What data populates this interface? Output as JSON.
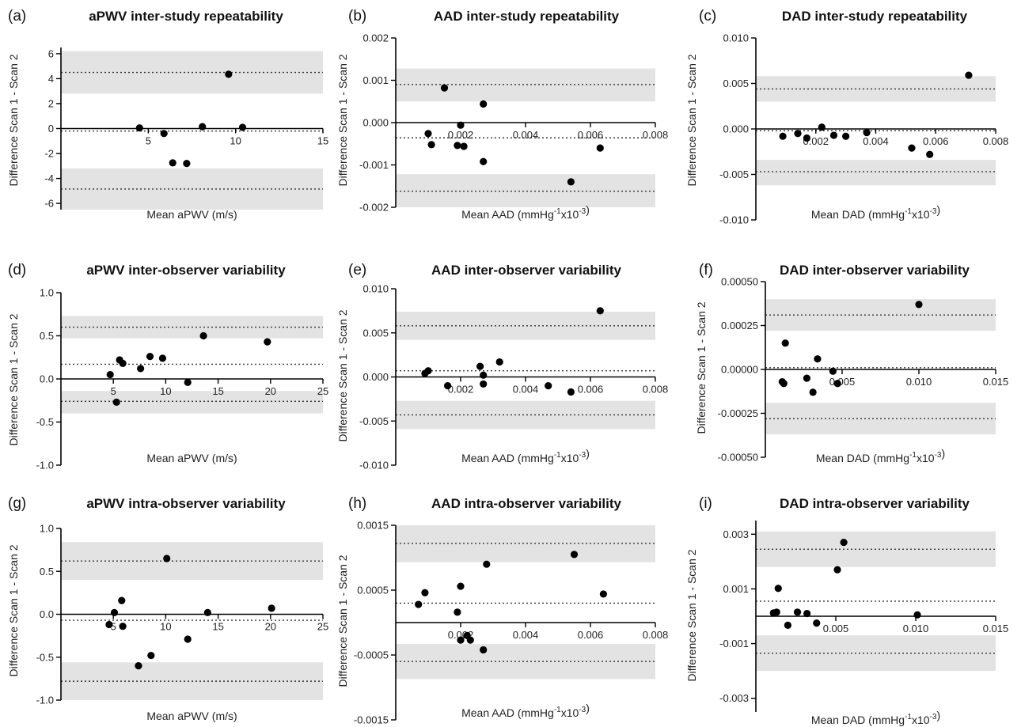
{
  "chart_data": [
    {
      "type": "scatter",
      "panel": "(a)",
      "title": "aPWV inter-study repeatability",
      "xlabel": "Mean aPWV (m/s)",
      "ylabel": "Difference Scan 1 - Scan 2",
      "xlim": [
        0,
        15
      ],
      "ylim": [
        -6.5,
        6.5
      ],
      "xticks": [
        {
          "v": 5,
          "t": "5"
        },
        {
          "v": 10,
          "t": "10"
        },
        {
          "v": 15,
          "t": "15"
        }
      ],
      "yticks": [
        {
          "v": -6,
          "t": "-6"
        },
        {
          "v": -4,
          "t": "-4"
        },
        {
          "v": -2,
          "t": "-2"
        },
        {
          "v": 0,
          "t": "0"
        },
        {
          "v": 2,
          "t": "2"
        },
        {
          "v": 4,
          "t": "4"
        },
        {
          "v": 6,
          "t": "6"
        }
      ],
      "xaxis_at_zero": true,
      "bias": -0.2,
      "upper_loa": 4.5,
      "lower_loa": -4.85,
      "upper_band": [
        2.8,
        6.2
      ],
      "lower_band": [
        -6.5,
        -3.2
      ],
      "points": [
        [
          4.5,
          0.05
        ],
        [
          5.9,
          -0.4
        ],
        [
          6.4,
          -2.75
        ],
        [
          7.2,
          -2.8
        ],
        [
          8.1,
          0.15
        ],
        [
          9.6,
          4.35
        ],
        [
          10.4,
          0.1
        ]
      ]
    },
    {
      "type": "scatter",
      "panel": "(b)",
      "title": "AAD inter-study repeatability",
      "xlabel": "Mean  AAD (mmHg-1x10-3)",
      "ylabel": "Difference Scan 1 - Scan 2",
      "xlim": [
        0,
        0.008
      ],
      "ylim": [
        -0.002,
        0.002
      ],
      "xticks": [
        {
          "v": 0.002,
          "t": "0.002"
        },
        {
          "v": 0.004,
          "t": "0.004"
        },
        {
          "v": 0.006,
          "t": "0.006"
        },
        {
          "v": 0.008,
          "t": "0.008"
        }
      ],
      "yticks": [
        {
          "v": -0.002,
          "t": "-0.002"
        },
        {
          "v": -0.001,
          "t": "-0.001"
        },
        {
          "v": 0,
          "t": "0.000"
        },
        {
          "v": 0.001,
          "t": "0.001"
        },
        {
          "v": 0.002,
          "t": "0.002"
        }
      ],
      "xaxis_at_zero": true,
      "bias": -0.00036,
      "upper_loa": 0.0009,
      "lower_loa": -0.00162,
      "upper_band": [
        0.0005,
        0.00128
      ],
      "lower_band": [
        -0.002,
        -0.00122
      ],
      "points": [
        [
          0.001,
          -0.00026
        ],
        [
          0.0011,
          -0.00052
        ],
        [
          0.0015,
          0.00082
        ],
        [
          0.0019,
          -0.00054
        ],
        [
          0.002,
          -6e-05
        ],
        [
          0.0021,
          -0.00056
        ],
        [
          0.0027,
          0.00044
        ],
        [
          0.0027,
          -0.00092
        ],
        [
          0.0054,
          -0.0014
        ],
        [
          0.0063,
          -0.0006
        ]
      ]
    },
    {
      "type": "scatter",
      "panel": "(c)",
      "title": "DAD inter-study repeatability",
      "xlabel": "Mean DAD (mmHg-1x10-3)",
      "ylabel": "Difference Scan 1 - Scan 2",
      "xlim": [
        0,
        0.008
      ],
      "ylim": [
        -0.01,
        0.01
      ],
      "xticks": [
        {
          "v": 0.002,
          "t": "0.002"
        },
        {
          "v": 0.004,
          "t": "0.004"
        },
        {
          "v": 0.006,
          "t": "0.006"
        },
        {
          "v": 0.008,
          "t": "0.008"
        }
      ],
      "yticks": [
        {
          "v": -0.01,
          "t": "-0.010"
        },
        {
          "v": -0.005,
          "t": "-0.005"
        },
        {
          "v": 0,
          "t": "0.000"
        },
        {
          "v": 0.005,
          "t": "0.005"
        },
        {
          "v": 0.01,
          "t": "0.010"
        }
      ],
      "xaxis_at_zero": true,
      "bias": -0.0002,
      "upper_loa": 0.0044,
      "lower_loa": -0.0047,
      "upper_band": [
        0.003,
        0.0058
      ],
      "lower_band": [
        -0.0062,
        -0.0034
      ],
      "points": [
        [
          0.0009,
          -0.0008
        ],
        [
          0.0014,
          -0.0005
        ],
        [
          0.0017,
          -0.001
        ],
        [
          0.0022,
          0.0002
        ],
        [
          0.0026,
          -0.0007
        ],
        [
          0.003,
          -0.0008
        ],
        [
          0.0037,
          -0.0004
        ],
        [
          0.0052,
          -0.0021
        ],
        [
          0.0058,
          -0.0028
        ],
        [
          0.0071,
          0.0059
        ]
      ]
    },
    {
      "type": "scatter",
      "panel": "(d)",
      "title": "aPWV inter-observer variability",
      "xlabel": "Mean aPWV (m/s)",
      "ylabel": "Difference Scan 1 - Scan 2",
      "xlim": [
        0,
        25
      ],
      "ylim": [
        -1.0,
        1.0
      ],
      "xticks": [
        {
          "v": 5,
          "t": "5"
        },
        {
          "v": 10,
          "t": "10"
        },
        {
          "v": 15,
          "t": "15"
        },
        {
          "v": 20,
          "t": "20"
        },
        {
          "v": 25,
          "t": "25"
        }
      ],
      "yticks": [
        {
          "v": -1,
          "t": "-1.0"
        },
        {
          "v": -0.5,
          "t": "-0.5"
        },
        {
          "v": 0,
          "t": "0.0"
        },
        {
          "v": 0.5,
          "t": "0.5"
        },
        {
          "v": 1,
          "t": "1.0"
        }
      ],
      "xaxis_at_zero": true,
      "bias": 0.17,
      "upper_loa": 0.6,
      "lower_loa": -0.26,
      "upper_band": [
        0.47,
        0.73
      ],
      "lower_band": [
        -0.4,
        -0.14
      ],
      "points": [
        [
          4.7,
          0.05
        ],
        [
          5.3,
          -0.27
        ],
        [
          5.6,
          0.22
        ],
        [
          5.9,
          0.18
        ],
        [
          7.6,
          0.12
        ],
        [
          8.5,
          0.26
        ],
        [
          9.7,
          0.24
        ],
        [
          12.1,
          -0.04
        ],
        [
          13.6,
          0.5
        ],
        [
          19.7,
          0.43
        ]
      ]
    },
    {
      "type": "scatter",
      "panel": "(e)",
      "title": "AAD inter-observer variability",
      "xlabel": "Mean  AAD (mmHg-1x10-3)",
      "ylabel": "Difference Scan 1 - Scan 2",
      "xlim": [
        0,
        0.008
      ],
      "ylim": [
        -0.01,
        0.01
      ],
      "xticks": [
        {
          "v": 0.002,
          "t": "0.002"
        },
        {
          "v": 0.004,
          "t": "0.004"
        },
        {
          "v": 0.006,
          "t": "0.006"
        },
        {
          "v": 0.008,
          "t": "0.008"
        }
      ],
      "yticks": [
        {
          "v": -0.01,
          "t": "-0.010"
        },
        {
          "v": -0.005,
          "t": "-0.005"
        },
        {
          "v": 0,
          "t": "0.000"
        },
        {
          "v": 0.005,
          "t": "0.005"
        },
        {
          "v": 0.01,
          "t": "0.010"
        }
      ],
      "xaxis_at_zero": true,
      "bias": 0.0007,
      "upper_loa": 0.0058,
      "lower_loa": -0.0043,
      "upper_band": [
        0.0042,
        0.0074
      ],
      "lower_band": [
        -0.0059,
        -0.0027
      ],
      "points": [
        [
          0.0009,
          0.0004
        ],
        [
          0.001,
          0.0007
        ],
        [
          0.0016,
          -0.001
        ],
        [
          0.0026,
          0.0012
        ],
        [
          0.0027,
          0.0002
        ],
        [
          0.0027,
          -0.0008
        ],
        [
          0.0032,
          0.0017
        ],
        [
          0.0047,
          -0.001
        ],
        [
          0.0054,
          -0.0017
        ],
        [
          0.0063,
          0.0075
        ]
      ]
    },
    {
      "type": "scatter",
      "panel": "(f)",
      "title": "DAD inter-observer variability",
      "xlabel": "Mean DAD (mmHg-1x10-3)",
      "ylabel": "Difference Scan 1 - Scan 2",
      "xlim": [
        0,
        0.015
      ],
      "ylim": [
        -0.0005,
        0.0005
      ],
      "xticks": [
        {
          "v": 0.005,
          "t": "0.005"
        },
        {
          "v": 0.01,
          "t": "0.010"
        },
        {
          "v": 0.015,
          "t": "0.015"
        }
      ],
      "yticks": [
        {
          "v": -0.0005,
          "t": "-0.00050"
        },
        {
          "v": -0.00025,
          "t": "-0.00025"
        },
        {
          "v": 0,
          "t": "0.00000"
        },
        {
          "v": 0.00025,
          "t": "0.00025"
        },
        {
          "v": 0.0005,
          "t": "0.00050"
        }
      ],
      "xaxis_at_zero": true,
      "bias": 1e-05,
      "upper_loa": 0.00031,
      "lower_loa": -0.00028,
      "upper_band": [
        0.00022,
        0.0004
      ],
      "lower_band": [
        -0.00037,
        -0.00019
      ],
      "points": [
        [
          0.0011,
          -7e-05
        ],
        [
          0.0012,
          -8e-05
        ],
        [
          0.0013,
          0.00015
        ],
        [
          0.0027,
          -5e-05
        ],
        [
          0.0031,
          -0.00013
        ],
        [
          0.0034,
          6e-05
        ],
        [
          0.0044,
          -1e-05
        ],
        [
          0.0047,
          -8e-05
        ],
        [
          0.01,
          0.00037
        ]
      ]
    },
    {
      "type": "scatter",
      "panel": "(g)",
      "title": "aPWV intra-observer variability",
      "xlabel": "Mean aPWV (m/s)",
      "ylabel": "Difference Scan 1 - Scan 2",
      "xlim": [
        0,
        25
      ],
      "ylim": [
        -1.0,
        1.0
      ],
      "xticks": [
        {
          "v": 5,
          "t": "5"
        },
        {
          "v": 10,
          "t": "10"
        },
        {
          "v": 15,
          "t": "15"
        },
        {
          "v": 20,
          "t": "20"
        },
        {
          "v": 25,
          "t": "25"
        }
      ],
      "yticks": [
        {
          "v": -1,
          "t": "-1.0"
        },
        {
          "v": -0.5,
          "t": "-0.5"
        },
        {
          "v": 0,
          "t": "0.0"
        },
        {
          "v": 0.5,
          "t": "0.5"
        },
        {
          "v": 1,
          "t": "1.0"
        }
      ],
      "xaxis_at_zero": true,
      "bias": -0.07,
      "upper_loa": 0.62,
      "lower_loa": -0.78,
      "upper_band": [
        0.4,
        0.84
      ],
      "lower_band": [
        -1.0,
        -0.56
      ],
      "points": [
        [
          4.6,
          -0.12
        ],
        [
          5.1,
          0.02
        ],
        [
          5.8,
          0.16
        ],
        [
          5.9,
          -0.14
        ],
        [
          7.4,
          -0.6
        ],
        [
          8.6,
          -0.48
        ],
        [
          10.1,
          0.65
        ],
        [
          12.1,
          -0.29
        ],
        [
          14.0,
          0.02
        ],
        [
          20.1,
          0.07
        ]
      ]
    },
    {
      "type": "scatter",
      "panel": "(h)",
      "title": "AAD intra-observer variability",
      "xlabel": "Mean  AAD (mmHg-1x10-3)",
      "ylabel": "Difference Scan 1 - Scan 2",
      "xlim": [
        0,
        0.008
      ],
      "ylim": [
        -0.0015,
        0.0015
      ],
      "xticks": [
        {
          "v": 0.002,
          "t": "0.002"
        },
        {
          "v": 0.004,
          "t": "0.004"
        },
        {
          "v": 0.006,
          "t": "0.006"
        },
        {
          "v": 0.008,
          "t": "0.008"
        }
      ],
      "yticks": [
        {
          "v": -0.0015,
          "t": "-0.0015"
        },
        {
          "v": -0.0005,
          "t": "-0.0005"
        },
        {
          "v": 0.0005,
          "t": "0.0005"
        },
        {
          "v": 0.0015,
          "t": "0.0015"
        }
      ],
      "xaxis_at_zero": true,
      "bias": 0.0003,
      "upper_loa": 0.00122,
      "lower_loa": -0.0006,
      "upper_band": [
        0.00093,
        0.0015
      ],
      "lower_band": [
        -0.00087,
        -0.00033
      ],
      "points": [
        [
          0.0007,
          0.00028
        ],
        [
          0.0009,
          0.00046
        ],
        [
          0.0019,
          0.00016
        ],
        [
          0.002,
          0.00056
        ],
        [
          0.002,
          -0.00027
        ],
        [
          0.0022,
          -0.0002
        ],
        [
          0.0023,
          -0.00027
        ],
        [
          0.0027,
          -0.00042
        ],
        [
          0.0028,
          0.0009
        ],
        [
          0.0055,
          0.00105
        ],
        [
          0.0064,
          0.00044
        ]
      ]
    },
    {
      "type": "scatter",
      "panel": "(i)",
      "title": "DAD intra-observer variability",
      "xlabel": "Mean DAD (mmHg-1x10-3)",
      "ylabel": "Difference Scan 1 - Scan 2",
      "xlim": [
        0,
        0.015
      ],
      "ylim": [
        -0.0035,
        0.0035
      ],
      "xticks": [
        {
          "v": 0.005,
          "t": "0.005"
        },
        {
          "v": 0.01,
          "t": "0.010"
        },
        {
          "v": 0.015,
          "t": "0.015"
        }
      ],
      "yticks": [
        {
          "v": -0.003,
          "t": "-0.003"
        },
        {
          "v": -0.001,
          "t": "-0.001"
        },
        {
          "v": 0.001,
          "t": "0.001"
        },
        {
          "v": 0.003,
          "t": "0.003"
        }
      ],
      "xaxis_at_zero": true,
      "bias": 0.00055,
      "upper_loa": 0.00245,
      "lower_loa": -0.00135,
      "upper_band": [
        0.0018,
        0.0031
      ],
      "lower_band": [
        -0.002,
        -0.0007
      ],
      "points": [
        [
          0.0011,
          0.00012
        ],
        [
          0.0013,
          0.00015
        ],
        [
          0.0014,
          0.00102
        ],
        [
          0.002,
          -0.00033
        ],
        [
          0.0026,
          0.00015
        ],
        [
          0.0032,
          0.0001
        ],
        [
          0.0038,
          -0.00025
        ],
        [
          0.0051,
          0.0017
        ],
        [
          0.0055,
          0.0027
        ],
        [
          0.0101,
          5e-05
        ]
      ]
    }
  ]
}
